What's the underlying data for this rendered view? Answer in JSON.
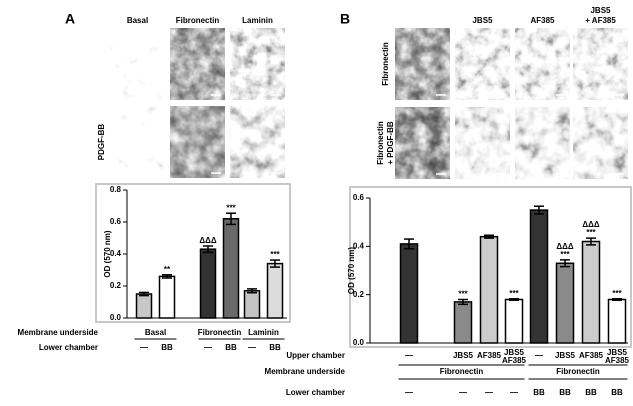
{
  "micrographs": [
    {
      "label": "A",
      "columns": [
        "Basal",
        "Fibronectin",
        "Laminin"
      ],
      "rows": [
        null,
        "PDGF-BB"
      ]
    },
    {
      "label": "B",
      "columns": [
        null,
        "JBS5",
        "AF385",
        [
          "JBS5",
          "+ AF385"
        ]
      ],
      "rows": [
        "Fibronectin",
        [
          "Fibronectin",
          "+ PDGF-BB"
        ]
      ]
    }
  ],
  "chart_data": [
    {
      "type": "bar",
      "ylabel": "OD (570 nm)",
      "ylim": [
        0,
        0.8
      ],
      "yticks": [
        {
          "value": 0,
          "label": "0.0"
        },
        0.2,
        0.4,
        0.6,
        0.8
      ],
      "values": [
        0.15,
        0.26,
        0.43,
        0.62,
        0.17,
        0.34
      ],
      "errors": [
        0.01,
        0.01,
        0.02,
        0.035,
        0.012,
        0.022
      ],
      "colors": [
        "#c8c8c8",
        "#ffffff",
        "#333333",
        "#6a6a6a",
        "#c4c4c4",
        "#dcdcdc"
      ],
      "annotations": [
        [],
        [
          "**"
        ],
        [
          "ΔΔΔ"
        ],
        [
          "***"
        ],
        [],
        [
          "***"
        ]
      ],
      "rows": [
        {
          "label": "Membrane underside",
          "groups": [
            "Basal",
            "Fibronectin",
            "Laminin"
          ]
        },
        {
          "label": "Lower chamber",
          "items": [
            "—",
            "BB",
            "—",
            "BB",
            "—",
            "BB"
          ]
        }
      ]
    },
    {
      "type": "bar",
      "ylabel": "OD (570 nm)",
      "ylim": [
        0,
        0.6
      ],
      "yticks": [
        {
          "value": 0,
          "label": "0.0"
        },
        0.2,
        0.4,
        0.6
      ],
      "values": [
        0.41,
        0.17,
        0.44,
        0.18,
        0.55,
        0.33,
        0.42,
        0.18
      ],
      "errors": [
        0.02,
        0.01,
        0.006,
        0.003,
        0.016,
        0.014,
        0.014,
        0.003
      ],
      "colors": [
        "#333333",
        "#8a8a8a",
        "#cccccc",
        "#ffffff",
        "#333333",
        "#8a8a8a",
        "#cccccc",
        "#ffffff"
      ],
      "annotations": [
        [],
        [
          "***"
        ],
        [],
        [
          "***"
        ],
        [],
        [
          "ΔΔΔ",
          "***"
        ],
        [
          "ΔΔΔ",
          "***"
        ],
        [
          "***"
        ]
      ],
      "rows": [
        {
          "label": "Upper chamber",
          "items": [
            "—",
            "JBS5",
            "AF385",
            [
              "JBS5",
              "AF385"
            ],
            "—",
            "JBS5",
            "AF385",
            [
              "JBS5",
              "AF385"
            ]
          ]
        },
        {
          "label": "Membrane underside",
          "groups": [
            "Fibronectin",
            "Fibronectin"
          ]
        },
        {
          "label": "Lower chamber",
          "items": [
            "—",
            "—",
            "—",
            "—",
            "BB",
            "BB",
            "BB",
            "BB"
          ]
        }
      ]
    }
  ]
}
